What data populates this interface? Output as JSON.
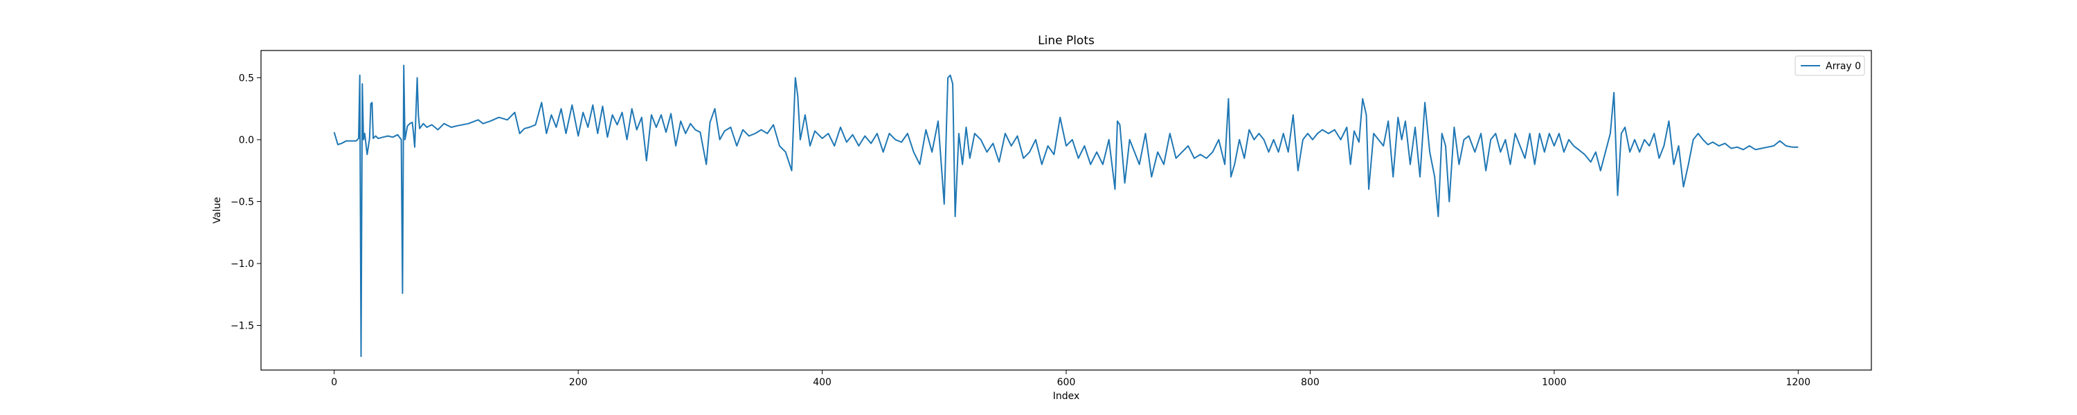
{
  "chart_data": {
    "type": "line",
    "title": "Line Plots",
    "xlabel": "Index",
    "ylabel": "Value",
    "xlim": [
      -60,
      1260
    ],
    "ylim": [
      -1.86,
      0.72
    ],
    "xticks": [
      0,
      200,
      400,
      600,
      800,
      1000,
      1200
    ],
    "yticks": [
      0.5,
      0.0,
      -0.5,
      -1.0,
      -1.5
    ],
    "ytick_labels": [
      "0.5",
      "0.0",
      "−0.5",
      "−1.0",
      "−1.5"
    ],
    "legend_position": "upper-right",
    "series": [
      {
        "name": "Array 0",
        "color": "#1f77b4",
        "points": [
          [
            0,
            0.06
          ],
          [
            3,
            -0.04
          ],
          [
            6,
            -0.03
          ],
          [
            10,
            -0.01
          ],
          [
            14,
            -0.01
          ],
          [
            18,
            -0.01
          ],
          [
            20,
            0.01
          ],
          [
            21,
            0.52
          ],
          [
            22,
            -1.75
          ],
          [
            23,
            0.45
          ],
          [
            24,
            0.0
          ],
          [
            25,
            0.05
          ],
          [
            27,
            -0.12
          ],
          [
            29,
            0.01
          ],
          [
            30,
            0.29
          ],
          [
            31,
            0.3
          ],
          [
            32,
            0.01
          ],
          [
            34,
            0.03
          ],
          [
            36,
            0.01
          ],
          [
            40,
            0.02
          ],
          [
            44,
            0.03
          ],
          [
            48,
            0.02
          ],
          [
            52,
            0.04
          ],
          [
            55,
            0.0
          ],
          [
            56,
            -1.24
          ],
          [
            57,
            0.6
          ],
          [
            58,
            0.0
          ],
          [
            60,
            0.11
          ],
          [
            62,
            0.13
          ],
          [
            64,
            0.14
          ],
          [
            65,
            0.05
          ],
          [
            66,
            -0.06
          ],
          [
            68,
            0.5
          ],
          [
            69,
            0.2
          ],
          [
            70,
            0.09
          ],
          [
            73,
            0.13
          ],
          [
            76,
            0.1
          ],
          [
            80,
            0.12
          ],
          [
            85,
            0.08
          ],
          [
            90,
            0.13
          ],
          [
            96,
            0.1
          ],
          [
            100,
            0.11
          ],
          [
            110,
            0.13
          ],
          [
            118,
            0.16
          ],
          [
            122,
            0.13
          ],
          [
            128,
            0.15
          ],
          [
            135,
            0.18
          ],
          [
            142,
            0.16
          ],
          [
            148,
            0.22
          ],
          [
            152,
            0.05
          ],
          [
            156,
            0.09
          ],
          [
            160,
            0.1
          ],
          [
            165,
            0.12
          ],
          [
            170,
            0.3
          ],
          [
            174,
            0.05
          ],
          [
            178,
            0.2
          ],
          [
            182,
            0.1
          ],
          [
            186,
            0.25
          ],
          [
            190,
            0.05
          ],
          [
            195,
            0.28
          ],
          [
            200,
            0.03
          ],
          [
            204,
            0.22
          ],
          [
            208,
            0.1
          ],
          [
            212,
            0.28
          ],
          [
            216,
            0.05
          ],
          [
            220,
            0.27
          ],
          [
            224,
            0.02
          ],
          [
            228,
            0.2
          ],
          [
            232,
            0.12
          ],
          [
            236,
            0.22
          ],
          [
            240,
            0.0
          ],
          [
            244,
            0.25
          ],
          [
            248,
            0.08
          ],
          [
            252,
            0.18
          ],
          [
            256,
            -0.17
          ],
          [
            260,
            0.2
          ],
          [
            264,
            0.1
          ],
          [
            268,
            0.2
          ],
          [
            272,
            0.06
          ],
          [
            276,
            0.21
          ],
          [
            280,
            -0.05
          ],
          [
            284,
            0.15
          ],
          [
            288,
            0.05
          ],
          [
            292,
            0.13
          ],
          [
            296,
            0.08
          ],
          [
            300,
            0.06
          ],
          [
            305,
            -0.2
          ],
          [
            308,
            0.14
          ],
          [
            312,
            0.25
          ],
          [
            316,
            0.0
          ],
          [
            320,
            0.07
          ],
          [
            325,
            0.1
          ],
          [
            330,
            -0.05
          ],
          [
            335,
            0.08
          ],
          [
            340,
            0.03
          ],
          [
            345,
            0.05
          ],
          [
            350,
            0.08
          ],
          [
            355,
            0.05
          ],
          [
            360,
            0.12
          ],
          [
            365,
            -0.05
          ],
          [
            370,
            -0.1
          ],
          [
            375,
            -0.25
          ],
          [
            378,
            0.5
          ],
          [
            380,
            0.35
          ],
          [
            382,
            0.0
          ],
          [
            386,
            0.2
          ],
          [
            390,
            -0.05
          ],
          [
            394,
            0.07
          ],
          [
            400,
            0.01
          ],
          [
            405,
            0.05
          ],
          [
            410,
            -0.05
          ],
          [
            415,
            0.1
          ],
          [
            420,
            -0.02
          ],
          [
            425,
            0.04
          ],
          [
            430,
            -0.05
          ],
          [
            435,
            0.03
          ],
          [
            440,
            -0.03
          ],
          [
            445,
            0.05
          ],
          [
            450,
            -0.1
          ],
          [
            455,
            0.05
          ],
          [
            460,
            0.0
          ],
          [
            465,
            -0.02
          ],
          [
            470,
            0.05
          ],
          [
            475,
            -0.1
          ],
          [
            480,
            -0.2
          ],
          [
            485,
            0.08
          ],
          [
            490,
            -0.1
          ],
          [
            495,
            0.15
          ],
          [
            500,
            -0.52
          ],
          [
            503,
            0.5
          ],
          [
            505,
            0.52
          ],
          [
            507,
            0.45
          ],
          [
            509,
            -0.62
          ],
          [
            512,
            0.05
          ],
          [
            515,
            -0.2
          ],
          [
            518,
            0.1
          ],
          [
            521,
            -0.15
          ],
          [
            525,
            0.05
          ],
          [
            530,
            0.0
          ],
          [
            535,
            -0.1
          ],
          [
            540,
            -0.03
          ],
          [
            545,
            -0.18
          ],
          [
            550,
            0.05
          ],
          [
            555,
            -0.05
          ],
          [
            560,
            0.03
          ],
          [
            565,
            -0.15
          ],
          [
            570,
            -0.1
          ],
          [
            575,
            0.0
          ],
          [
            580,
            -0.2
          ],
          [
            585,
            -0.05
          ],
          [
            590,
            -0.12
          ],
          [
            595,
            0.18
          ],
          [
            600,
            -0.05
          ],
          [
            605,
            0.0
          ],
          [
            610,
            -0.15
          ],
          [
            615,
            -0.05
          ],
          [
            620,
            -0.2
          ],
          [
            625,
            -0.1
          ],
          [
            630,
            -0.2
          ],
          [
            635,
            0.0
          ],
          [
            640,
            -0.4
          ],
          [
            642,
            0.15
          ],
          [
            644,
            0.12
          ],
          [
            648,
            -0.35
          ],
          [
            652,
            0.0
          ],
          [
            656,
            -0.1
          ],
          [
            660,
            -0.2
          ],
          [
            665,
            0.05
          ],
          [
            670,
            -0.3
          ],
          [
            675,
            -0.1
          ],
          [
            680,
            -0.2
          ],
          [
            685,
            0.05
          ],
          [
            690,
            -0.15
          ],
          [
            695,
            -0.1
          ],
          [
            700,
            -0.05
          ],
          [
            705,
            -0.15
          ],
          [
            710,
            -0.12
          ],
          [
            715,
            -0.15
          ],
          [
            720,
            -0.1
          ],
          [
            725,
            0.0
          ],
          [
            730,
            -0.2
          ],
          [
            733,
            0.33
          ],
          [
            735,
            -0.3
          ],
          [
            738,
            -0.2
          ],
          [
            742,
            0.0
          ],
          [
            746,
            -0.15
          ],
          [
            750,
            0.08
          ],
          [
            754,
            0.0
          ],
          [
            758,
            0.05
          ],
          [
            762,
            0.0
          ],
          [
            766,
            -0.1
          ],
          [
            770,
            0.0
          ],
          [
            774,
            -0.1
          ],
          [
            778,
            0.05
          ],
          [
            782,
            -0.1
          ],
          [
            786,
            0.2
          ],
          [
            790,
            -0.25
          ],
          [
            794,
            0.0
          ],
          [
            798,
            0.05
          ],
          [
            802,
            0.0
          ],
          [
            806,
            0.05
          ],
          [
            810,
            0.08
          ],
          [
            815,
            0.05
          ],
          [
            820,
            0.08
          ],
          [
            825,
            0.0
          ],
          [
            830,
            0.1
          ],
          [
            833,
            -0.2
          ],
          [
            836,
            0.07
          ],
          [
            840,
            -0.02
          ],
          [
            843,
            0.33
          ],
          [
            846,
            0.2
          ],
          [
            848,
            -0.4
          ],
          [
            852,
            0.05
          ],
          [
            856,
            0.0
          ],
          [
            860,
            -0.05
          ],
          [
            864,
            0.15
          ],
          [
            868,
            -0.3
          ],
          [
            872,
            0.18
          ],
          [
            875,
            0.0
          ],
          [
            878,
            0.15
          ],
          [
            882,
            -0.2
          ],
          [
            886,
            0.1
          ],
          [
            890,
            -0.3
          ],
          [
            894,
            0.3
          ],
          [
            898,
            -0.1
          ],
          [
            902,
            -0.3
          ],
          [
            905,
            -0.62
          ],
          [
            908,
            0.05
          ],
          [
            911,
            -0.05
          ],
          [
            914,
            -0.5
          ],
          [
            918,
            0.1
          ],
          [
            922,
            -0.2
          ],
          [
            926,
            0.0
          ],
          [
            930,
            0.03
          ],
          [
            935,
            -0.1
          ],
          [
            940,
            0.05
          ],
          [
            944,
            -0.25
          ],
          [
            948,
            0.0
          ],
          [
            952,
            0.05
          ],
          [
            956,
            -0.1
          ],
          [
            960,
            0.0
          ],
          [
            964,
            -0.2
          ],
          [
            968,
            0.05
          ],
          [
            972,
            -0.05
          ],
          [
            976,
            -0.15
          ],
          [
            980,
            0.05
          ],
          [
            984,
            -0.2
          ],
          [
            988,
            0.05
          ],
          [
            992,
            -0.1
          ],
          [
            996,
            0.05
          ],
          [
            1000,
            -0.05
          ],
          [
            1004,
            0.05
          ],
          [
            1008,
            -0.1
          ],
          [
            1012,
            0.0
          ],
          [
            1016,
            -0.05
          ],
          [
            1020,
            -0.08
          ],
          [
            1025,
            -0.12
          ],
          [
            1030,
            -0.18
          ],
          [
            1034,
            -0.1
          ],
          [
            1038,
            -0.25
          ],
          [
            1042,
            -0.1
          ],
          [
            1046,
            0.05
          ],
          [
            1049,
            0.38
          ],
          [
            1052,
            -0.45
          ],
          [
            1055,
            0.05
          ],
          [
            1058,
            0.1
          ],
          [
            1062,
            -0.1
          ],
          [
            1066,
            0.0
          ],
          [
            1070,
            -0.1
          ],
          [
            1074,
            0.0
          ],
          [
            1078,
            -0.05
          ],
          [
            1082,
            0.05
          ],
          [
            1086,
            -0.15
          ],
          [
            1090,
            -0.05
          ],
          [
            1094,
            0.15
          ],
          [
            1098,
            -0.2
          ],
          [
            1102,
            -0.05
          ],
          [
            1106,
            -0.38
          ],
          [
            1110,
            -0.2
          ],
          [
            1114,
            0.0
          ],
          [
            1118,
            0.05
          ],
          [
            1122,
            0.0
          ],
          [
            1126,
            -0.04
          ],
          [
            1130,
            -0.02
          ],
          [
            1135,
            -0.05
          ],
          [
            1140,
            -0.03
          ],
          [
            1145,
            -0.07
          ],
          [
            1150,
            -0.06
          ],
          [
            1155,
            -0.08
          ],
          [
            1160,
            -0.05
          ],
          [
            1165,
            -0.08
          ],
          [
            1170,
            -0.07
          ],
          [
            1175,
            -0.06
          ],
          [
            1180,
            -0.05
          ],
          [
            1185,
            -0.01
          ],
          [
            1190,
            -0.05
          ],
          [
            1195,
            -0.06
          ],
          [
            1200,
            -0.06
          ]
        ]
      }
    ]
  }
}
